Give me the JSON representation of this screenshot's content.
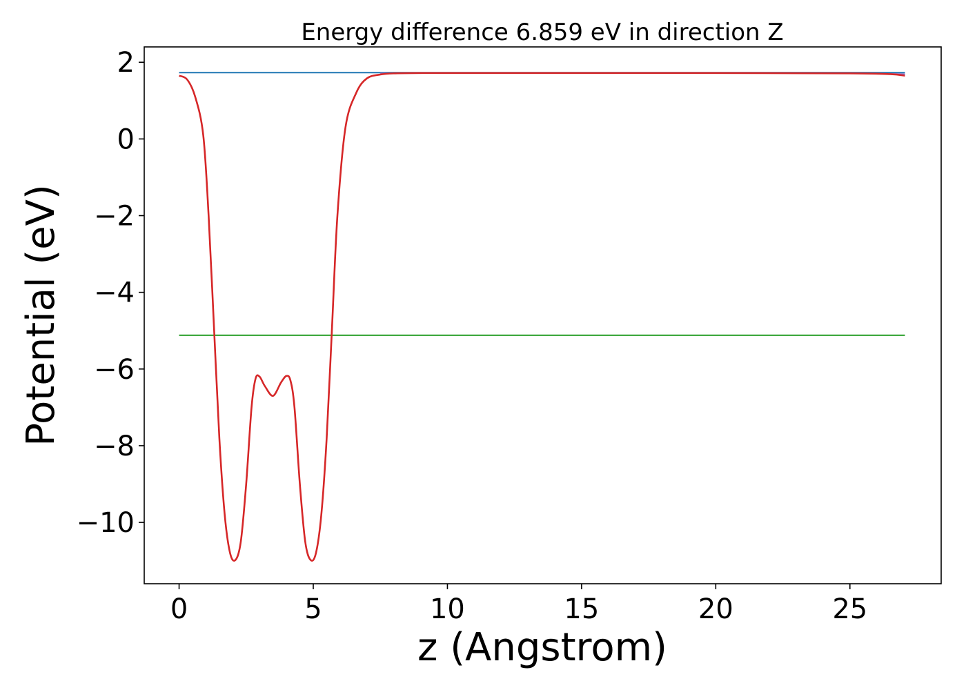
{
  "chart_data": {
    "type": "line",
    "title": "Energy difference 6.859 eV in direction Z",
    "xlabel": "z (Angstrom)",
    "ylabel": "Potential (eV)",
    "xlim": [
      -1.3,
      28.4
    ],
    "ylim": [
      -11.6,
      2.4
    ],
    "xticks": [
      0,
      5,
      10,
      15,
      20,
      25
    ],
    "yticks": [
      2,
      0,
      -2,
      -4,
      -6,
      -8,
      -10
    ],
    "xtick_labels": [
      "0",
      "5",
      "10",
      "15",
      "20",
      "25"
    ],
    "ytick_labels": [
      "2",
      "0",
      "−2",
      "−4",
      "−6",
      "−8",
      "−10"
    ],
    "grid": false,
    "legend": "none",
    "series": [
      {
        "color": "#1f77b4",
        "x": [
          0,
          27.05
        ],
        "y": [
          1.73,
          1.73
        ]
      },
      {
        "color": "#2ca02c",
        "x": [
          0,
          27.05
        ],
        "y": [
          -5.12,
          -5.12
        ]
      },
      {
        "color": "#9467bd",
        "x": [
          7.5,
          10,
          15,
          20,
          25,
          27.05
        ],
        "y": [
          1.71,
          1.72,
          1.72,
          1.72,
          1.71,
          1.69
        ]
      },
      {
        "color": "#d62728",
        "x": [
          0,
          0.3,
          0.6,
          0.9,
          1.1,
          1.3,
          1.5,
          1.7,
          1.9,
          2.1,
          2.3,
          2.5,
          2.7,
          2.85,
          3.0,
          3.2,
          3.5,
          3.8,
          4.0,
          4.15,
          4.3,
          4.5,
          4.7,
          4.9,
          5.1,
          5.3,
          5.5,
          5.7,
          5.9,
          6.2,
          6.6,
          7.0,
          7.5,
          8.0,
          9.0,
          10,
          15,
          20,
          25,
          26.5,
          27.05
        ],
        "y": [
          1.65,
          1.55,
          1.1,
          0.1,
          -2.0,
          -4.9,
          -7.8,
          -9.8,
          -10.8,
          -10.98,
          -10.5,
          -9.0,
          -7.0,
          -6.25,
          -6.2,
          -6.45,
          -6.7,
          -6.35,
          -6.18,
          -6.3,
          -7.0,
          -9.0,
          -10.5,
          -10.98,
          -10.8,
          -9.8,
          -7.8,
          -4.9,
          -2.0,
          0.3,
          1.2,
          1.58,
          1.68,
          1.71,
          1.72,
          1.72,
          1.72,
          1.72,
          1.71,
          1.69,
          1.65
        ]
      }
    ]
  }
}
